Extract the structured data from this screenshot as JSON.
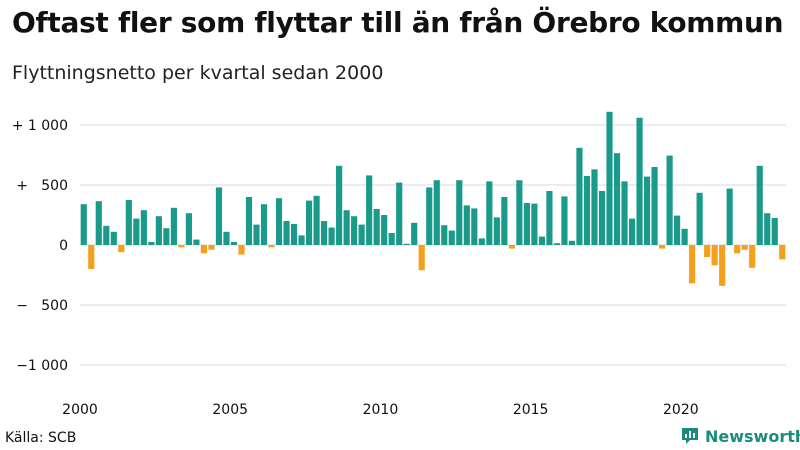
{
  "header": {
    "title": "Oftast fler som flyttar till än från Örebro kommun",
    "subtitle": "Flyttningsnetto per kvartal sedan 2000"
  },
  "footer": {
    "source": "Källa: SCB",
    "brand": "Newsworthy"
  },
  "colors": {
    "positive": "#1a9a8a",
    "negative": "#f5a01d",
    "grid": "#d9d9d9",
    "brand": "#1a8c7e"
  },
  "chart_data": {
    "type": "bar",
    "title": "Oftast fler som flyttar till än från Örebro kommun",
    "subtitle": "Flyttningsnetto per kvartal sedan 2000",
    "xlabel": "",
    "ylabel": "",
    "x_start": "2000 Q1",
    "period": "quarter",
    "ylim": [
      -1100,
      1150
    ],
    "y_ticks": [
      {
        "value": 1000,
        "label": "+ 1 000"
      },
      {
        "value": 500,
        "label": "+   500"
      },
      {
        "value": 0,
        "label": "0"
      },
      {
        "value": -500,
        "label": "−   500"
      },
      {
        "value": -1000,
        "label": "−1 000"
      }
    ],
    "x_ticks": [
      {
        "index": 0,
        "label": "2000"
      },
      {
        "index": 20,
        "label": "2005"
      },
      {
        "index": 40,
        "label": "2010"
      },
      {
        "index": 60,
        "label": "2015"
      },
      {
        "index": 80,
        "label": "2020"
      }
    ],
    "grid": true,
    "values": [
      340,
      -200,
      365,
      160,
      110,
      -60,
      375,
      220,
      290,
      25,
      240,
      140,
      310,
      -20,
      265,
      45,
      -70,
      -40,
      480,
      110,
      25,
      -80,
      400,
      170,
      340,
      -20,
      390,
      200,
      175,
      80,
      370,
      410,
      200,
      145,
      660,
      290,
      240,
      170,
      580,
      300,
      250,
      100,
      520,
      10,
      185,
      -210,
      480,
      540,
      165,
      120,
      540,
      330,
      305,
      55,
      530,
      230,
      400,
      -30,
      540,
      350,
      345,
      70,
      450,
      15,
      405,
      35,
      810,
      575,
      630,
      450,
      1110,
      765,
      530,
      220,
      1060,
      570,
      650,
      -30,
      745,
      245,
      135,
      -320,
      435,
      -100,
      -170,
      -340,
      470,
      -70,
      -40,
      -190,
      660,
      265,
      225,
      -120
    ]
  }
}
